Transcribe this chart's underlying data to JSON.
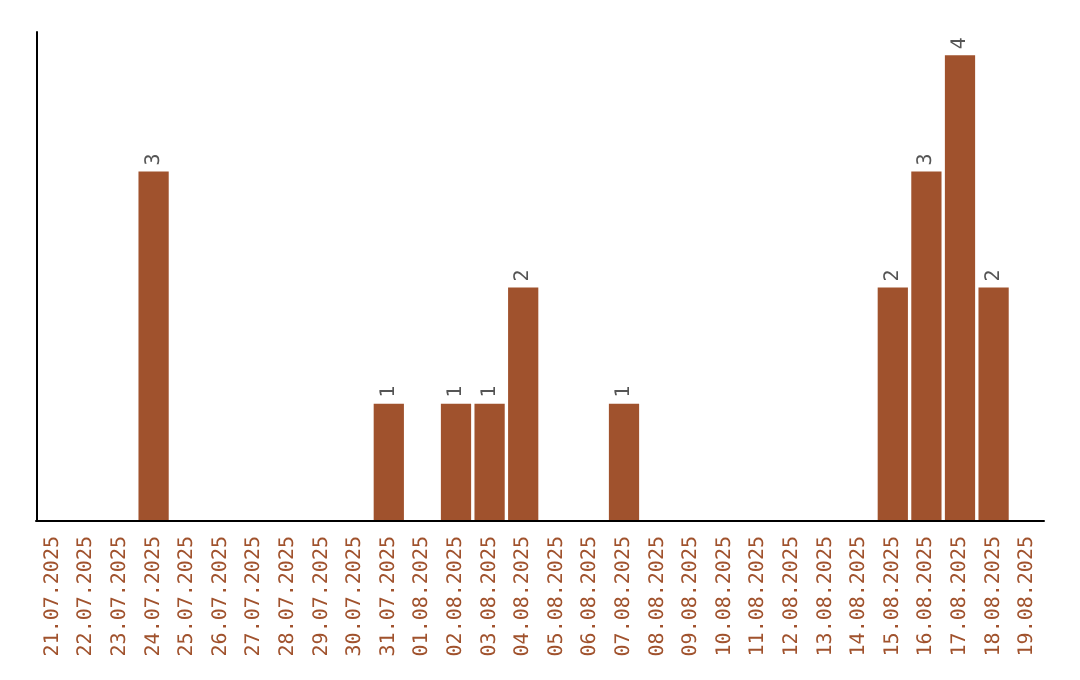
{
  "chart_data": {
    "type": "bar",
    "categories": [
      "21.07.2025",
      "22.07.2025",
      "23.07.2025",
      "24.07.2025",
      "25.07.2025",
      "26.07.2025",
      "27.07.2025",
      "28.07.2025",
      "29.07.2025",
      "30.07.2025",
      "31.07.2025",
      "01.08.2025",
      "02.08.2025",
      "03.08.2025",
      "04.08.2025",
      "05.08.2025",
      "06.08.2025",
      "07.08.2025",
      "08.08.2025",
      "09.08.2025",
      "10.08.2025",
      "11.08.2025",
      "12.08.2025",
      "13.08.2025",
      "14.08.2025",
      "15.08.2025",
      "16.08.2025",
      "17.08.2025",
      "18.08.2025",
      "19.08.2025"
    ],
    "values": [
      0,
      0,
      0,
      3,
      0,
      0,
      0,
      0,
      0,
      0,
      1,
      0,
      1,
      1,
      2,
      0,
      0,
      1,
      0,
      0,
      0,
      0,
      0,
      0,
      0,
      2,
      3,
      4,
      2,
      0
    ],
    "value_labels": [
      null,
      null,
      null,
      "3",
      null,
      null,
      null,
      null,
      null,
      null,
      "1",
      null,
      "1",
      "1",
      "2",
      null,
      null,
      "1",
      null,
      null,
      null,
      null,
      null,
      null,
      null,
      "2",
      "3",
      "4",
      "2",
      null
    ],
    "color": "#a0522d",
    "tick_labels": "x"
  }
}
